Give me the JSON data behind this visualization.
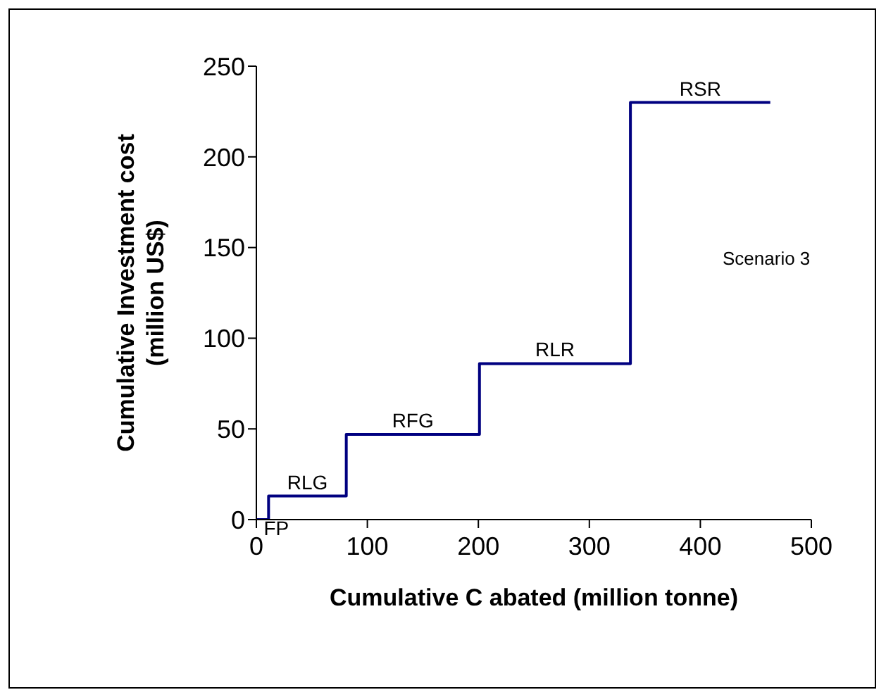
{
  "chart_data": {
    "type": "step",
    "xlabel": "Cumulative C abated (million tonne)",
    "ylabel": "Cumulative Investment cost\n(million US$)",
    "x": [
      0,
      11,
      81,
      201,
      337,
      463
    ],
    "series": [
      {
        "color": "#000080",
        "values": [
          0,
          13,
          47,
          86,
          230,
          230
        ]
      }
    ],
    "xlim": [
      0,
      500
    ],
    "xticks": [
      0,
      100,
      200,
      300,
      400,
      500
    ],
    "ylim": [
      0,
      250
    ],
    "yticks": [
      0,
      50,
      100,
      150,
      200,
      250
    ],
    "grid": false,
    "legend": false,
    "marker": "none",
    "line_style": "solid",
    "annotations": [
      {
        "text": "FP",
        "x": 18,
        "y": 0
      },
      {
        "text": "RLG",
        "x": 46,
        "y": 13
      },
      {
        "text": "RFG",
        "x": 141,
        "y": 47
      },
      {
        "text": "RLR",
        "x": 269,
        "y": 86
      },
      {
        "text": "RSR",
        "x": 400,
        "y": 230
      },
      "Scenario 3"
    ]
  }
}
